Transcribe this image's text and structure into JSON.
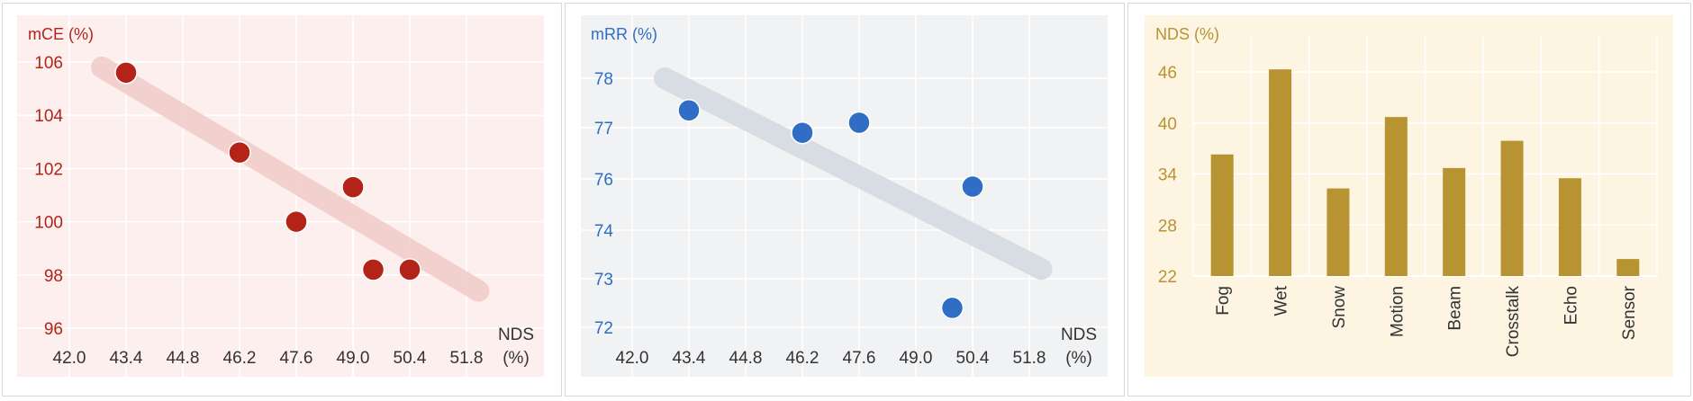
{
  "panels": [
    {
      "type": "scatter",
      "ylabel": "mCE (%)",
      "xlabel_line1": "NDS",
      "xlabel_line2": "(%)",
      "x_ticks": [
        "42.0",
        "43.4",
        "44.8",
        "46.2",
        "47.6",
        "49.0",
        "50.4",
        "51.8"
      ],
      "y_ticks": [
        "96",
        "98",
        "100",
        "102",
        "104",
        "106"
      ],
      "colors": {
        "bg": "#fcefee",
        "point": "#b42318",
        "trend": "#f2cfcc",
        "label": "#b42318",
        "grid": "#ffffff"
      }
    },
    {
      "type": "scatter",
      "ylabel": "mRR (%)",
      "xlabel_line1": "NDS",
      "xlabel_line2": "(%)",
      "x_ticks": [
        "42.0",
        "43.4",
        "44.8",
        "46.2",
        "47.6",
        "49.0",
        "50.4",
        "51.8"
      ],
      "y_ticks": [
        "72",
        "73",
        "74",
        "76",
        "77",
        "78"
      ],
      "colors": {
        "bg": "#f1f2f4",
        "point": "#2f6ec4",
        "trend": "#d6dce3",
        "label": "#2f6ec4",
        "grid": "#ffffff"
      }
    },
    {
      "type": "bar",
      "ylabel": "NDS (%)",
      "y_ticks": [
        "22",
        "28",
        "34",
        "40",
        "46"
      ],
      "categories": [
        "Fog",
        "Wet",
        "Snow",
        "Motion",
        "Beam",
        "Crosstalk",
        "Echo",
        "Sensor"
      ],
      "colors": {
        "bg": "#fdf5e2",
        "bar": "#b89332",
        "label": "#b89332",
        "grid": "#ffffff"
      }
    }
  ],
  "chart_data": [
    {
      "type": "scatter",
      "ylabel": "mCE (%)",
      "xlabel": "NDS (%)",
      "xlim": [
        41.5,
        53.0
      ],
      "ylim": [
        96,
        107
      ],
      "series": [
        {
          "x": [
            43.4,
            46.2,
            47.6,
            49.0,
            50.4,
            49.5
          ],
          "y": [
            105.6,
            102.6,
            100.0,
            101.3,
            98.2,
            98.2
          ]
        }
      ],
      "trend": {
        "x": [
          42.8,
          52.1
        ],
        "y": [
          105.8,
          97.4
        ]
      }
    },
    {
      "type": "scatter",
      "ylabel": "mRR (%)",
      "xlabel": "NDS (%)",
      "xlim": [
        41.5,
        53.0
      ],
      "series": [
        {
          "x": [
            43.4,
            46.2,
            47.6,
            49.9,
            50.4
          ],
          "y": [
            77.35,
            76.9,
            77.1,
            72.4,
            75.7
          ]
        }
      ],
      "trend": {
        "x": [
          42.8,
          52.1
        ],
        "y": [
          78.0,
          73.2
        ]
      }
    },
    {
      "type": "bar",
      "ylabel": "NDS (%)",
      "ylim": [
        22,
        48
      ],
      "categories": [
        "Fog",
        "Wet",
        "Snow",
        "Motion",
        "Beam",
        "Crosstalk",
        "Echo",
        "Sensor"
      ],
      "values": [
        36.3,
        46.3,
        32.3,
        40.7,
        34.7,
        37.9,
        33.5,
        24.0
      ]
    }
  ]
}
